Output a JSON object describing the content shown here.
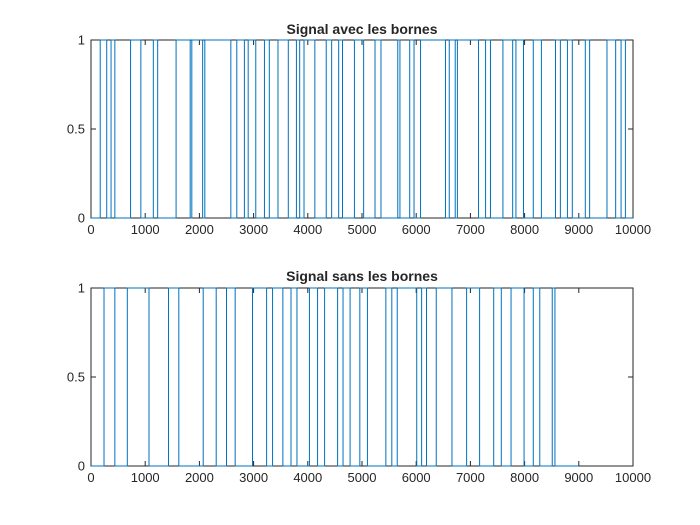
{
  "chart_data": [
    {
      "type": "line",
      "title": "Signal avec les bornes",
      "xlabel": "",
      "ylabel": "",
      "xlim": [
        0,
        10000
      ],
      "ylim": [
        0,
        1
      ],
      "xticks": [
        "0",
        "1000",
        "2000",
        "3000",
        "4000",
        "5000",
        "6000",
        "7000",
        "8000",
        "9000",
        "10000"
      ],
      "yticks": [
        "0",
        "0.5",
        "1"
      ],
      "grid": false,
      "color": "#0072BD",
      "series": [
        {
          "x": [
            0,
            170,
            170,
            290,
            290,
            370,
            370,
            440,
            440,
            730,
            730,
            920,
            920,
            1150,
            1150,
            1230,
            1230,
            1570,
            1570,
            1830,
            1830,
            1860,
            1860,
            2060,
            2060,
            2100,
            2100,
            2580,
            2580,
            2690,
            2690,
            2830,
            2830,
            2900,
            2900,
            3040,
            3040,
            3200,
            3200,
            3290,
            3290,
            3450,
            3450,
            3640,
            3640,
            3790,
            3790,
            3850,
            3850,
            3930,
            3930,
            4130,
            4130,
            4340,
            4340,
            4440,
            4440,
            4570,
            4570,
            4640,
            4640,
            4860,
            4860,
            5030,
            5030,
            5240,
            5240,
            5350,
            5350,
            5660,
            5660,
            5700,
            5700,
            5880,
            5880,
            5960,
            5960,
            6080,
            6080,
            6540,
            6540,
            6610,
            6610,
            6720,
            6720,
            6760,
            6760,
            7150,
            7150,
            7280,
            7280,
            7370,
            7370,
            7600,
            7600,
            7780,
            7780,
            7840,
            7840,
            7980,
            7980,
            8160,
            8160,
            8310,
            8310,
            8570,
            8570,
            8660,
            8660,
            8790,
            8790,
            8880,
            8880,
            9120,
            9120,
            9200,
            9200,
            9520,
            9520,
            9680,
            9680,
            9780,
            9780,
            9860,
            9860,
            10000
          ],
          "y": [
            0,
            0,
            1,
            1,
            0,
            0,
            1,
            1,
            0,
            0,
            1,
            1,
            0,
            0,
            1,
            1,
            0,
            0,
            1,
            1,
            0,
            0,
            1,
            1,
            0,
            0,
            1,
            1,
            0,
            0,
            1,
            1,
            0,
            0,
            1,
            1,
            0,
            0,
            1,
            1,
            0,
            0,
            1,
            1,
            0,
            0,
            1,
            1,
            0,
            0,
            1,
            1,
            0,
            0,
            1,
            1,
            0,
            0,
            1,
            1,
            0,
            0,
            1,
            1,
            0,
            0,
            1,
            1,
            0,
            0,
            1,
            1,
            0,
            0,
            1,
            1,
            0,
            0,
            1,
            1,
            0,
            0,
            1,
            1,
            0,
            0,
            1,
            1,
            0,
            0,
            1,
            1,
            0,
            0,
            1,
            1,
            0,
            0,
            1,
            1,
            0,
            0,
            1,
            1,
            0,
            0,
            1,
            1,
            0,
            0,
            1,
            1,
            0,
            0,
            1,
            1,
            0,
            0,
            1,
            1,
            0,
            0,
            1,
            1,
            0,
            0
          ]
        }
      ]
    },
    {
      "type": "line",
      "title": "Signal sans les bornes",
      "xlabel": "",
      "ylabel": "",
      "xlim": [
        0,
        10000
      ],
      "ylim": [
        0,
        1
      ],
      "xticks": [
        "0",
        "1000",
        "2000",
        "3000",
        "4000",
        "5000",
        "6000",
        "7000",
        "8000",
        "9000",
        "10000"
      ],
      "yticks": [
        "0",
        "0.5",
        "1"
      ],
      "grid": false,
      "color": "#0072BD",
      "series": [
        {
          "x": [
            0,
            240,
            240,
            440,
            440,
            670,
            670,
            1070,
            1070,
            1430,
            1430,
            1620,
            1620,
            2070,
            2070,
            2310,
            2310,
            2500,
            2500,
            2660,
            2660,
            2980,
            2980,
            3240,
            3240,
            3350,
            3350,
            3540,
            3540,
            3690,
            3690,
            3800,
            3800,
            4030,
            4030,
            4180,
            4180,
            4310,
            4310,
            4550,
            4550,
            4650,
            4650,
            4780,
            4780,
            4960,
            4960,
            5100,
            5100,
            5440,
            5440,
            5550,
            5550,
            5650,
            5650,
            6010,
            6010,
            6100,
            6100,
            6190,
            6190,
            6370,
            6370,
            6660,
            6660,
            6930,
            6930,
            7170,
            7170,
            7430,
            7430,
            7570,
            7570,
            7750,
            7750,
            7990,
            7990,
            8160,
            8160,
            8280,
            8280,
            8510,
            8510,
            8560,
            8560,
            8760,
            8760,
            9000
          ],
          "y": [
            0,
            0,
            1,
            1,
            0,
            0,
            1,
            1,
            0,
            0,
            1,
            1,
            0,
            0,
            1,
            1,
            0,
            0,
            1,
            1,
            0,
            0,
            1,
            1,
            0,
            0,
            1,
            1,
            0,
            0,
            1,
            1,
            0,
            0,
            1,
            1,
            0,
            0,
            1,
            1,
            0,
            0,
            1,
            1,
            0,
            0,
            1,
            1,
            0,
            0,
            1,
            1,
            0,
            0,
            1,
            1,
            0,
            0,
            1,
            1,
            0,
            0,
            1,
            1,
            0,
            0,
            1,
            1,
            0,
            0,
            1,
            1,
            0,
            0,
            1,
            1,
            0,
            0,
            1,
            1,
            0,
            0,
            1,
            1,
            0,
            0,
            0,
            0
          ]
        }
      ]
    }
  ]
}
